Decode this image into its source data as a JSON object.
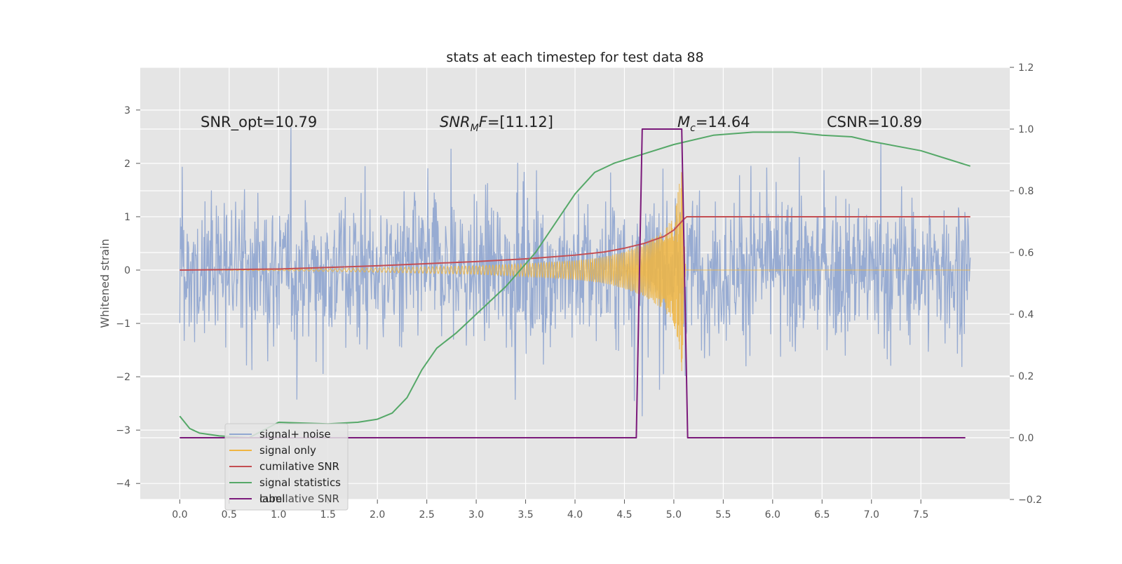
{
  "chart_data": {
    "type": "line",
    "title": "stats at each timestep for test data 88",
    "xlabel": "",
    "ylabel": "Whitened strain",
    "y2label": "",
    "xlim": [
      -0.4,
      8.4
    ],
    "ylim": [
      -4.3,
      3.8
    ],
    "y2lim": [
      -0.2,
      1.2
    ],
    "grid": true,
    "background": "#e5e5e5",
    "x_ticks": [
      "0.0",
      "0.5",
      "1.0",
      "1.5",
      "2.0",
      "2.5",
      "3.0",
      "3.5",
      "4.0",
      "4.5",
      "5.0",
      "5.5",
      "6.0",
      "6.5",
      "7.0",
      "7.5"
    ],
    "y_ticks": [
      "3",
      "2",
      "1",
      "0",
      "−1",
      "−2",
      "−3",
      "−4"
    ],
    "y2_ticks": [
      "1.2",
      "1.0",
      "0.8",
      "0.6",
      "0.4",
      "0.2",
      "0.0",
      "−0.2"
    ],
    "annotations": [
      {
        "text": "SNR_opt=10.79"
      },
      {
        "text": "SNR_MF=[11.12]"
      },
      {
        "text": "M_c=14.64"
      },
      {
        "text": "CSNR=10.89"
      }
    ],
    "legend": {
      "position": "lower-left",
      "entries": [
        "signal+ noise",
        "signal only",
        "cumilative SNR",
        "signal statistics",
        "label"
      ],
      "ghost_entry": "cumilative SNR"
    },
    "series": [
      {
        "name": "signal+ noise",
        "axis": "left",
        "color": "#92a8d1",
        "style": "noise band, roughly ±1.5 with spikes to about ±3.3",
        "x_range": [
          0.0,
          8.0
        ]
      },
      {
        "name": "signal only",
        "axis": "left",
        "color": "#f0b541",
        "style": "chirp",
        "envelope": {
          "x": [
            0.0,
            1.0,
            2.0,
            3.0,
            3.5,
            4.0,
            4.3,
            4.5,
            4.7,
            4.9,
            5.0,
            5.08,
            5.12,
            8.0
          ],
          "amp": [
            0.0,
            0.01,
            0.04,
            0.08,
            0.12,
            0.18,
            0.25,
            0.35,
            0.5,
            0.75,
            1.0,
            1.9,
            0.0,
            0.0
          ]
        }
      },
      {
        "name": "cumilative SNR",
        "axis": "left",
        "color": "#c44e52",
        "x": [
          0.0,
          1.0,
          1.5,
          2.0,
          2.5,
          3.0,
          3.5,
          4.0,
          4.3,
          4.5,
          4.7,
          4.9,
          5.0,
          5.05,
          5.1,
          5.13,
          8.0
        ],
        "y": [
          0.0,
          0.02,
          0.05,
          0.08,
          0.12,
          0.16,
          0.21,
          0.28,
          0.34,
          0.41,
          0.5,
          0.63,
          0.75,
          0.85,
          0.95,
          1.0,
          1.0
        ]
      },
      {
        "name": "signal statistics",
        "axis": "right",
        "color": "#55a868",
        "x": [
          0.0,
          0.1,
          0.2,
          0.4,
          0.7,
          1.0,
          1.5,
          1.8,
          2.0,
          2.15,
          2.3,
          2.45,
          2.6,
          2.8,
          3.0,
          3.3,
          3.6,
          4.0,
          4.2,
          4.4,
          4.7,
          5.0,
          5.4,
          5.8,
          6.2,
          6.5,
          6.8,
          7.0,
          7.5,
          7.8,
          8.0
        ],
        "y": [
          0.07,
          0.03,
          0.015,
          0.006,
          0.0,
          0.05,
          0.045,
          0.05,
          0.06,
          0.08,
          0.13,
          0.22,
          0.29,
          0.34,
          0.4,
          0.49,
          0.6,
          0.79,
          0.86,
          0.89,
          0.92,
          0.95,
          0.98,
          0.99,
          0.99,
          0.98,
          0.975,
          0.96,
          0.93,
          0.9,
          0.88
        ]
      },
      {
        "name": "label",
        "axis": "right",
        "color": "#7b1a7b",
        "x": [
          0.0,
          4.62,
          4.68,
          5.08,
          5.14,
          7.95
        ],
        "y": [
          0.0,
          0.0,
          1.0,
          1.0,
          0.0,
          0.0
        ]
      }
    ]
  }
}
